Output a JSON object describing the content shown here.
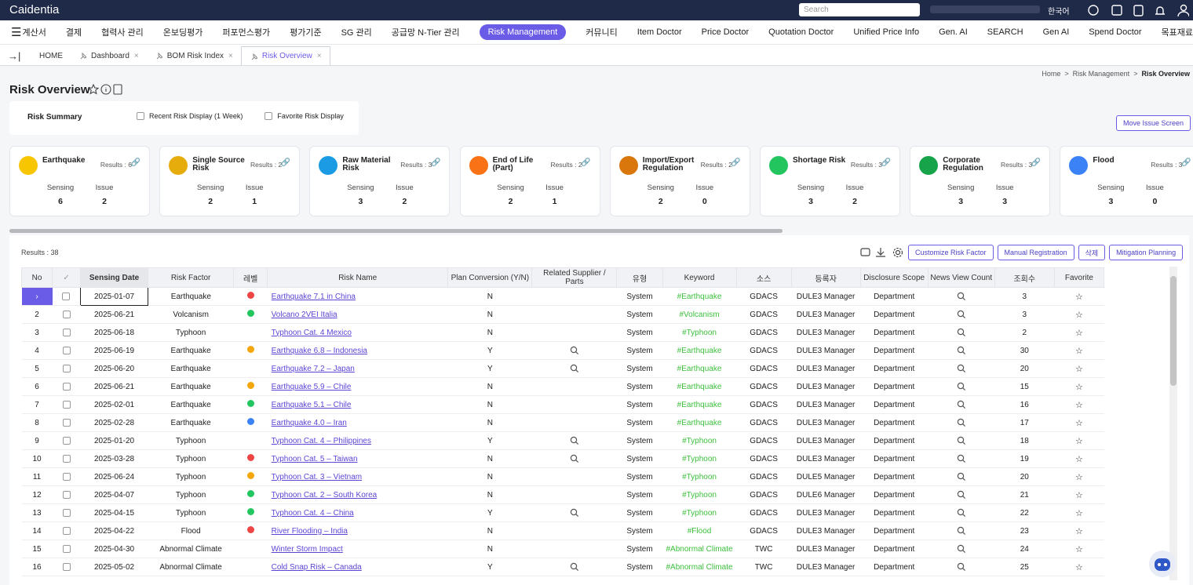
{
  "header": {
    "logo": "Caidentia",
    "search": "Search",
    "language": "한국어"
  },
  "nav": [
    "계산서",
    "결제",
    "협력사 관리",
    "온보딩평가",
    "퍼포먼스평가",
    "평가기준",
    "SG 관리",
    "공급망 N-Tier 관리",
    "Risk Management",
    "커뮤니티",
    "Item Doctor",
    "Price Doctor",
    "Quotation Doctor",
    "Unified Price Info",
    "Gen. AI",
    "SEARCH",
    "Gen AI",
    "Spend Doctor",
    "목표재료비"
  ],
  "nav_active": "Risk Management",
  "tabs": [
    "HOME",
    "Dashboard",
    "BOM Risk Index",
    "Risk Overview"
  ],
  "breadcrumb": [
    "Home",
    "Risk Management",
    "Risk Overview"
  ],
  "page_title": "Risk Overview",
  "summary": {
    "title": "Risk Summary",
    "options": [
      "Recent Risk Display (1 Week)",
      "Favorite Risk Display"
    ],
    "button": "Move Issue Screen"
  },
  "cards": {
    "sensing_label": "Sensing",
    "issue_label": "Issue",
    "items": [
      {
        "name": "Earthquake",
        "results": "Results : 6",
        "sensing": 6,
        "issue": 2,
        "color": "#f7c600"
      },
      {
        "name": "Single Source Risk",
        "results": "Results : 2",
        "sensing": 2,
        "issue": 1,
        "color": "#e6ac0c"
      },
      {
        "name": "Raw Material Risk",
        "results": "Results : 3",
        "sensing": 3,
        "issue": 2,
        "color": "#1a9be3"
      },
      {
        "name": "End of Life (Part)",
        "results": "Results : 2",
        "sensing": 2,
        "issue": 1,
        "color": "#f97316"
      },
      {
        "name": "Import/Export Regulation",
        "results": "Results : 2",
        "sensing": 2,
        "issue": 0,
        "color": "#d9770c"
      },
      {
        "name": "Shortage Risk",
        "results": "Results : 3",
        "sensing": 3,
        "issue": 2,
        "color": "#22c55e"
      },
      {
        "name": "Corporate Regulation",
        "results": "Results : 3",
        "sensing": 3,
        "issue": 3,
        "color": "#16a34a"
      },
      {
        "name": "Flood",
        "results": "Results : 3",
        "sensing": 3,
        "issue": 0,
        "color": "#3b82f6"
      }
    ]
  },
  "table": {
    "results": "Results : 38",
    "buttons": [
      "Customize Risk Factor",
      "Manual Registration",
      "삭제",
      "Mitigation Planning"
    ],
    "columns": [
      "No",
      "Sensing Date",
      "Risk Factor",
      "레벨",
      "Risk Name",
      "Plan Conversion (Y/N)",
      "Related Supplier / Parts",
      "유형",
      "Keyword",
      "소스",
      "등록자",
      "Disclosure Scope",
      "News View Count",
      "조회수",
      "Favorite"
    ],
    "rows": [
      {
        "no": null,
        "selected": true,
        "date": "2025-01-07",
        "factor": "Earthquake",
        "level": "#ef4444",
        "name": "Earthquake 7.1 in China",
        "plan": "N",
        "related": false,
        "type": "System",
        "keyword": "#Earthquake",
        "source": "GDACS",
        "registrant": "DULE3 Manager",
        "scope": "Department",
        "views": 3
      },
      {
        "no": 2,
        "date": "2025-06-21",
        "factor": "Volcanism",
        "level": "#22c55e",
        "name": "Volcano 2VEI Italia",
        "plan": "N",
        "related": false,
        "type": "System",
        "keyword": "#Volcanism",
        "source": "GDACS",
        "registrant": "DULE3 Manager",
        "scope": "Department",
        "views": 3
      },
      {
        "no": 3,
        "date": "2025-06-18",
        "factor": "Typhoon",
        "level": null,
        "name": "Typhoon Cat. 4 Mexico",
        "plan": "N",
        "related": false,
        "type": "System",
        "keyword": "#Typhoon",
        "source": "GDACS",
        "registrant": "DULE3 Manager",
        "scope": "Department",
        "views": 2
      },
      {
        "no": 4,
        "date": "2025-06-19",
        "factor": "Earthquake",
        "level": "#f5a60b",
        "name": "Earthquake 6.8 – Indonesia",
        "plan": "Y",
        "related": true,
        "type": "System",
        "keyword": "#Earthquake",
        "source": "GDACS",
        "registrant": "DULE3 Manager",
        "scope": "Department",
        "views": 30
      },
      {
        "no": 5,
        "date": "2025-06-20",
        "factor": "Earthquake",
        "level": null,
        "name": "Earthquake 7.2 – Japan",
        "plan": "Y",
        "related": true,
        "type": "System",
        "keyword": "#Earthquake",
        "source": "GDACS",
        "registrant": "DULE3 Manager",
        "scope": "Department",
        "views": 20
      },
      {
        "no": 6,
        "date": "2025-06-21",
        "factor": "Earthquake",
        "level": "#f5a60b",
        "name": "Earthquake 5.9 – Chile",
        "plan": "N",
        "related": false,
        "type": "System",
        "keyword": "#Earthquake",
        "source": "GDACS",
        "registrant": "DULE3 Manager",
        "scope": "Department",
        "views": 15
      },
      {
        "no": 7,
        "date": "2025-02-01",
        "factor": "Earthquake",
        "level": "#22c55e",
        "name": "Earthquake 5.1 – Chile",
        "plan": "N",
        "related": false,
        "type": "System",
        "keyword": "#Earthquake",
        "source": "GDACS",
        "registrant": "DULE3 Manager",
        "scope": "Department",
        "views": 16
      },
      {
        "no": 8,
        "date": "2025-02-28",
        "factor": "Earthquake",
        "level": "#3b82f6",
        "name": "Earthquake 4.0 – Iran",
        "plan": "N",
        "related": false,
        "type": "System",
        "keyword": "#Earthquake",
        "source": "GDACS",
        "registrant": "DULE3 Manager",
        "scope": "Department",
        "views": 17
      },
      {
        "no": 9,
        "date": "2025-01-20",
        "factor": "Typhoon",
        "level": null,
        "name": "Typhoon Cat. 4 – Philippines",
        "plan": "Y",
        "related": true,
        "type": "System",
        "keyword": "#Typhoon",
        "source": "GDACS",
        "registrant": "DULE3 Manager",
        "scope": "Department",
        "views": 18
      },
      {
        "no": 10,
        "date": "2025-03-28",
        "factor": "Typhoon",
        "level": "#ef4444",
        "name": "Typhoon Cat. 5 – Taiwan",
        "plan": "N",
        "related": true,
        "type": "System",
        "keyword": "#Typhoon",
        "source": "GDACS",
        "registrant": "DULE3 Manager",
        "scope": "Department",
        "views": 19
      },
      {
        "no": 11,
        "date": "2025-06-24",
        "factor": "Typhoon",
        "level": "#f5a60b",
        "name": "Typhoon Cat. 3 – Vietnam",
        "plan": "N",
        "related": false,
        "type": "System",
        "keyword": "#Typhoon",
        "source": "GDACS",
        "registrant": "DULE5 Manager",
        "scope": "Department",
        "views": 20
      },
      {
        "no": 12,
        "date": "2025-04-07",
        "factor": "Typhoon",
        "level": "#22c55e",
        "name": "Typhoon Cat. 2 – South Korea",
        "plan": "N",
        "related": false,
        "type": "System",
        "keyword": "#Typhoon",
        "source": "GDACS",
        "registrant": "DULE6 Manager",
        "scope": "Department",
        "views": 21
      },
      {
        "no": 13,
        "date": "2025-04-15",
        "factor": "Typhoon",
        "level": "#22c55e",
        "name": "Typhoon Cat. 4 – China",
        "plan": "Y",
        "related": true,
        "type": "System",
        "keyword": "#Typhoon",
        "source": "GDACS",
        "registrant": "DULE3 Manager",
        "scope": "Department",
        "views": 22
      },
      {
        "no": 14,
        "date": "2025-04-22",
        "factor": "Flood",
        "level": "#ef4444",
        "name": "River Flooding – India",
        "plan": "N",
        "related": false,
        "type": "System",
        "keyword": "#Flood",
        "source": "GDACS",
        "registrant": "DULE3 Manager",
        "scope": "Department",
        "views": 23
      },
      {
        "no": 15,
        "date": "2025-04-30",
        "factor": "Abnormal Climate",
        "level": null,
        "name": "Winter Storm Impact",
        "plan": "N",
        "related": false,
        "type": "System",
        "keyword": "#Abnormal Climate",
        "source": "TWC",
        "registrant": "DULE3 Manager",
        "scope": "Department",
        "views": 24
      },
      {
        "no": 16,
        "date": "2025-05-02",
        "factor": "Abnormal Climate",
        "level": null,
        "name": "Cold Snap Risk – Canada",
        "plan": "Y",
        "related": true,
        "type": "System",
        "keyword": "#Abnormal Climate",
        "source": "TWC",
        "registrant": "DULE3 Manager",
        "scope": "Department",
        "views": 25
      }
    ]
  }
}
